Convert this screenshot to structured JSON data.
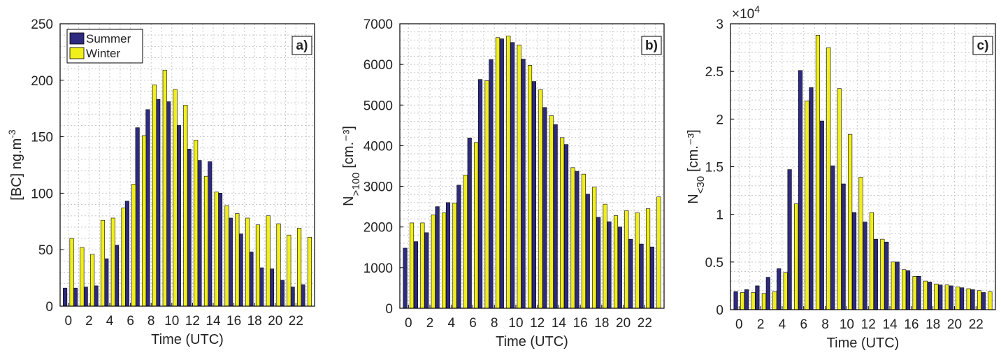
{
  "colors": {
    "summer": "#2e2a7f",
    "winter": "#f0ef1c",
    "grid": "#c8c8c8"
  },
  "xlabel": "Time (UTC)",
  "chart_data": [
    {
      "type": "bar",
      "panel_label": "a)",
      "ylabel": "[BC] ng.m",
      "ylabel_sup": "-3",
      "ylabel_sub": "",
      "ylabel_bracket": "",
      "exponent": "",
      "x": [
        0,
        1,
        2,
        3,
        4,
        5,
        6,
        7,
        8,
        9,
        10,
        11,
        12,
        13,
        14,
        15,
        16,
        17,
        18,
        19,
        20,
        21,
        22,
        23
      ],
      "xticks": [
        0,
        2,
        4,
        6,
        8,
        10,
        12,
        14,
        16,
        18,
        20,
        22
      ],
      "ylim": [
        0,
        250
      ],
      "yticks": [
        0,
        50,
        100,
        150,
        200,
        250
      ],
      "ytick_labels": [
        "0",
        "50",
        "100",
        "150",
        "200",
        "250"
      ],
      "grid": true,
      "legend": {
        "placement": "top-left",
        "entries": [
          "Summer",
          "Winter"
        ]
      },
      "series": [
        {
          "name": "Summer",
          "values": [
            16,
            16,
            17,
            18,
            42,
            54,
            93,
            158,
            174,
            183,
            181,
            160,
            139,
            129,
            128,
            100,
            78,
            64,
            48,
            34,
            33,
            23,
            17,
            19
          ]
        },
        {
          "name": "Winter",
          "values": [
            60,
            52,
            46,
            76,
            78,
            87,
            108,
            151,
            196,
            209,
            192,
            178,
            147,
            115,
            101,
            89,
            82,
            78,
            72,
            80,
            73,
            63,
            69,
            61
          ]
        }
      ]
    },
    {
      "type": "bar",
      "panel_label": "b)",
      "ylabel": "N",
      "ylabel_sup": "",
      "ylabel_sub": ">100",
      "ylabel_bracket": "[cm.⁻³]",
      "exponent": "",
      "x": [
        0,
        1,
        2,
        3,
        4,
        5,
        6,
        7,
        8,
        9,
        10,
        11,
        12,
        13,
        14,
        15,
        16,
        17,
        18,
        19,
        20,
        21,
        22,
        23
      ],
      "xticks": [
        0,
        2,
        4,
        6,
        8,
        10,
        12,
        14,
        16,
        18,
        20,
        22
      ],
      "ylim": [
        0,
        7000
      ],
      "yticks": [
        0,
        1000,
        2000,
        3000,
        4000,
        5000,
        6000,
        7000
      ],
      "ytick_labels": [
        "0",
        "1000",
        "2000",
        "3000",
        "4000",
        "5000",
        "6000",
        "7000"
      ],
      "grid": true,
      "series": [
        {
          "name": "Summer",
          "values": [
            1480,
            1640,
            1860,
            2500,
            2600,
            3030,
            4190,
            5630,
            6120,
            6630,
            6540,
            6130,
            5580,
            4940,
            4520,
            4030,
            3370,
            2810,
            2240,
            2130,
            2000,
            1700,
            1580,
            1510
          ]
        },
        {
          "name": "Winter",
          "values": [
            2100,
            2100,
            2300,
            2350,
            2590,
            3280,
            4080,
            5600,
            6660,
            6700,
            6480,
            5980,
            5380,
            4740,
            4200,
            3460,
            3300,
            2980,
            2560,
            2280,
            2400,
            2350,
            2450,
            2740
          ]
        }
      ]
    },
    {
      "type": "bar",
      "panel_label": "c)",
      "ylabel": "N",
      "ylabel_sup": "",
      "ylabel_sub": "<30",
      "ylabel_bracket": "[cm.⁻³]",
      "exponent": "×10",
      "exponent_power": "4",
      "x": [
        0,
        1,
        2,
        3,
        4,
        5,
        6,
        7,
        8,
        9,
        10,
        11,
        12,
        13,
        14,
        15,
        16,
        17,
        18,
        19,
        20,
        21,
        22,
        23
      ],
      "xticks": [
        0,
        2,
        4,
        6,
        8,
        10,
        12,
        14,
        16,
        18,
        20,
        22
      ],
      "ylim": [
        0,
        3
      ],
      "yticks": [
        0,
        0.5,
        1,
        1.5,
        2,
        2.5,
        3
      ],
      "ytick_labels": [
        "0",
        "0.5",
        "1",
        "1.5",
        "2",
        "2.5",
        "3"
      ],
      "grid": true,
      "series": [
        {
          "name": "Summer",
          "values": [
            0.19,
            0.21,
            0.25,
            0.34,
            0.43,
            1.47,
            2.51,
            2.33,
            1.98,
            1.51,
            1.32,
            1.02,
            0.92,
            0.74,
            0.71,
            0.5,
            0.41,
            0.35,
            0.29,
            0.26,
            0.25,
            0.23,
            0.21,
            0.18
          ]
        },
        {
          "name": "Winter",
          "values": [
            0.18,
            0.18,
            0.17,
            0.19,
            0.39,
            1.11,
            2.19,
            2.88,
            2.75,
            2.32,
            1.84,
            1.39,
            1.02,
            0.74,
            0.5,
            0.42,
            0.35,
            0.3,
            0.27,
            0.26,
            0.24,
            0.22,
            0.2,
            0.19
          ]
        }
      ]
    }
  ]
}
